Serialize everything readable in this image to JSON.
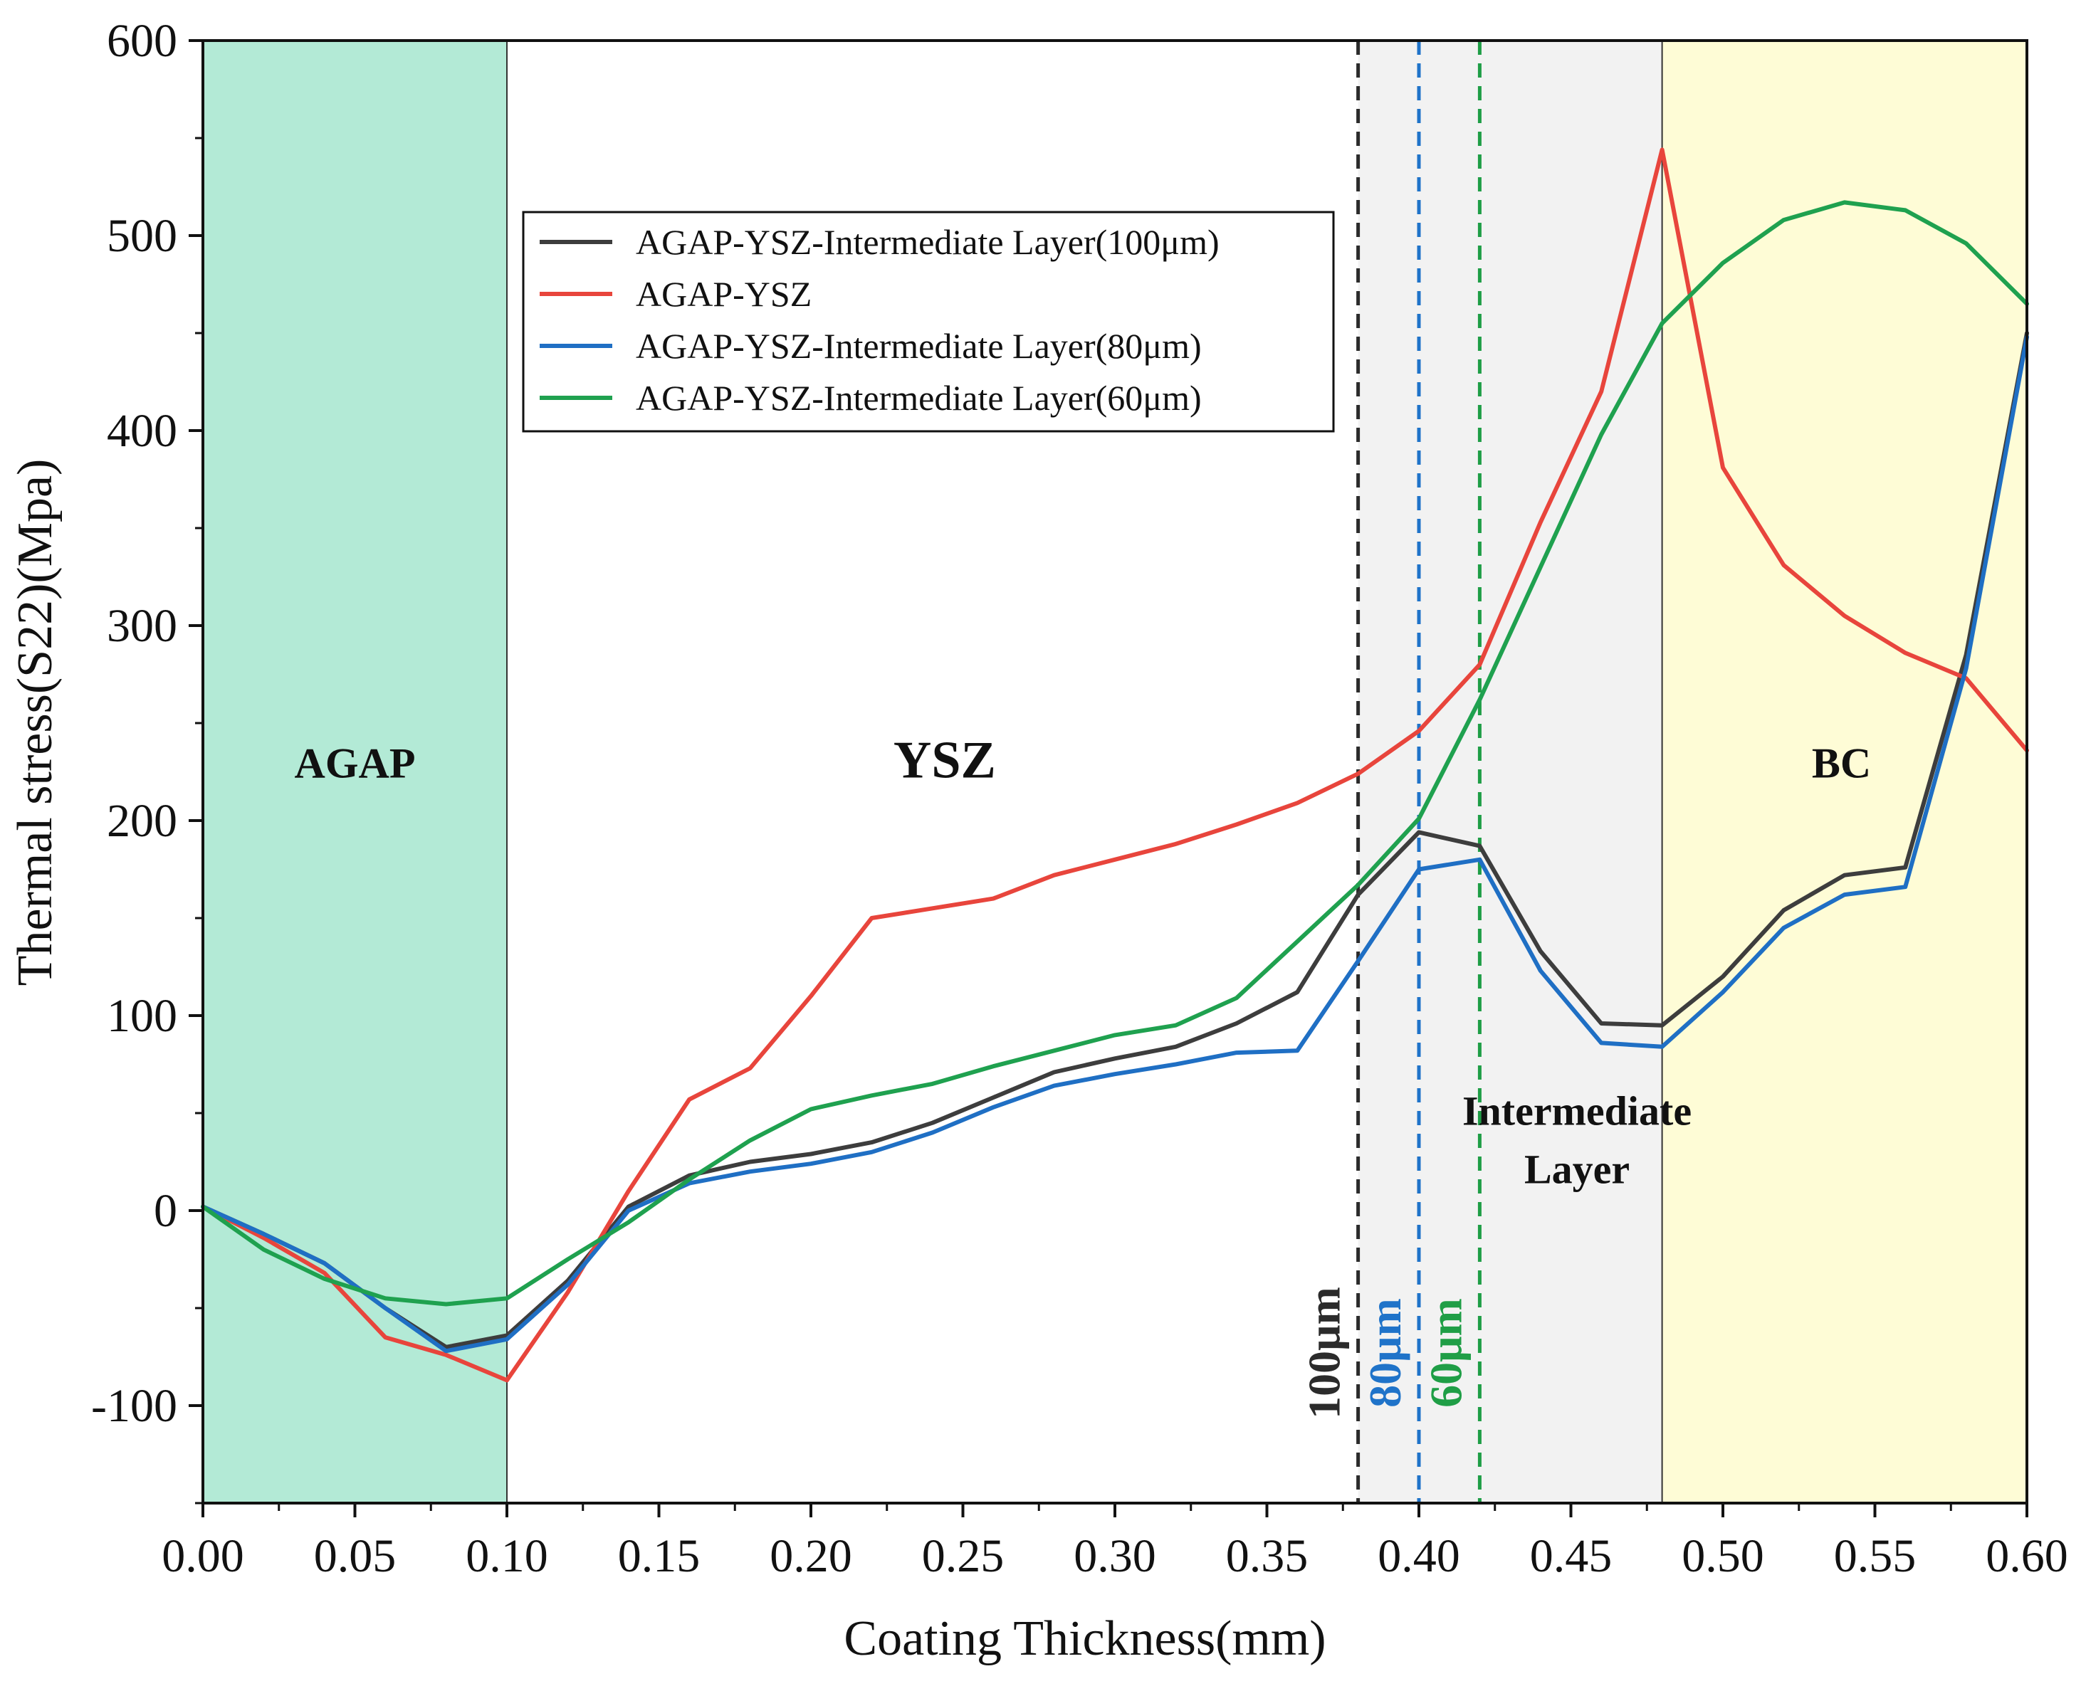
{
  "chart_data": {
    "type": "line",
    "xlabel": "Coating Thickness(mm)",
    "ylabel": "Thermal stress(S22)(Mpa)",
    "xlim": [
      0,
      0.6
    ],
    "ylim": [
      -150,
      600
    ],
    "xticks": [
      0.0,
      0.05,
      0.1,
      0.15,
      0.2,
      0.25,
      0.3,
      0.35,
      0.4,
      0.45,
      0.5,
      0.55,
      0.6
    ],
    "xtick_labels": [
      "0.00",
      "0.05",
      "0.10",
      "0.15",
      "0.20",
      "0.25",
      "0.30",
      "0.35",
      "0.40",
      "0.45",
      "0.50",
      "0.55",
      "0.60"
    ],
    "yticks": [
      -100,
      0,
      100,
      200,
      300,
      400,
      500,
      600
    ],
    "ytick_labels": [
      "-100",
      "0",
      "100",
      "200",
      "300",
      "400",
      "500",
      "600"
    ],
    "legend_position": "upper-center",
    "regions": [
      {
        "name": "AGAP",
        "label": "AGAP",
        "x0": 0.0,
        "x1": 0.1,
        "color": "#b3ead6",
        "label_x": 0.05,
        "label_y": 222
      },
      {
        "name": "YSZ",
        "label": "YSZ",
        "x0": 0.1,
        "x1": 0.38,
        "color": "#ffffff",
        "label_x": 0.244,
        "label_y": 222
      },
      {
        "name": "Intermediate",
        "label": "Intermediate",
        "label2": "Layer",
        "x0": 0.38,
        "x1": 0.48,
        "color": "#f2f2f2",
        "label_x": 0.452,
        "label_y": 44,
        "label2_y": 14
      },
      {
        "name": "BC",
        "label": "BC",
        "x0": 0.48,
        "x1": 0.6,
        "color": "#fefcd6",
        "label_x": 0.539,
        "label_y": 222
      }
    ],
    "boundaries": [
      {
        "x": 0.38,
        "label": "100μm",
        "color": "#2b2b2b"
      },
      {
        "x": 0.4,
        "label": "80μm",
        "color": "#1f73c9"
      },
      {
        "x": 0.42,
        "label": "60μm",
        "color": "#1f9e46"
      }
    ],
    "series": [
      {
        "name": "AGAP-YSZ-Intermediate Layer(100μm)",
        "color": "#3d3d3d",
        "x": [
          0.0,
          0.02,
          0.04,
          0.06,
          0.08,
          0.1,
          0.12,
          0.14,
          0.16,
          0.18,
          0.2,
          0.22,
          0.24,
          0.26,
          0.28,
          0.3,
          0.32,
          0.34,
          0.36,
          0.38,
          0.4,
          0.42,
          0.44,
          0.46,
          0.48,
          0.5,
          0.52,
          0.54,
          0.56,
          0.58,
          0.6
        ],
        "y": [
          2,
          -12,
          -27,
          -50,
          -70,
          -64,
          -36,
          2,
          18,
          25,
          29,
          35,
          45,
          58,
          71,
          78,
          84,
          96,
          112,
          162,
          194,
          187,
          133,
          96,
          95,
          120,
          154,
          172,
          176,
          285,
          450
        ]
      },
      {
        "name": "AGAP-YSZ",
        "color": "#e8453c",
        "x": [
          0.0,
          0.02,
          0.04,
          0.06,
          0.08,
          0.1,
          0.12,
          0.14,
          0.16,
          0.18,
          0.2,
          0.22,
          0.24,
          0.26,
          0.28,
          0.3,
          0.32,
          0.34,
          0.36,
          0.38,
          0.4,
          0.42,
          0.44,
          0.46,
          0.48,
          0.5,
          0.52,
          0.54,
          0.56,
          0.58,
          0.6
        ],
        "y": [
          2,
          -14,
          -32,
          -65,
          -74,
          -87,
          -42,
          10,
          57,
          73,
          110,
          150,
          155,
          160,
          172,
          180,
          188,
          198,
          209,
          224,
          246,
          280,
          353,
          420,
          544,
          381,
          331,
          305,
          286,
          273,
          236
        ]
      },
      {
        "name": "AGAP-YSZ-Intermediate Layer(80μm)",
        "color": "#1f6fc4",
        "x": [
          0.0,
          0.02,
          0.04,
          0.06,
          0.08,
          0.1,
          0.12,
          0.14,
          0.16,
          0.18,
          0.2,
          0.22,
          0.24,
          0.26,
          0.28,
          0.3,
          0.32,
          0.34,
          0.36,
          0.38,
          0.4,
          0.42,
          0.44,
          0.46,
          0.48,
          0.5,
          0.52,
          0.54,
          0.56,
          0.58,
          0.6
        ],
        "y": [
          2,
          -12,
          -27,
          -50,
          -72,
          -66,
          -38,
          0,
          14,
          20,
          24,
          30,
          40,
          53,
          64,
          70,
          75,
          81,
          82,
          128,
          175,
          180,
          123,
          86,
          84,
          112,
          145,
          162,
          166,
          278,
          448
        ]
      },
      {
        "name": "AGAP-YSZ-Intermediate Layer(60μm)",
        "color": "#1fa14f",
        "x": [
          0.0,
          0.02,
          0.04,
          0.06,
          0.08,
          0.1,
          0.12,
          0.14,
          0.16,
          0.18,
          0.2,
          0.22,
          0.24,
          0.26,
          0.28,
          0.3,
          0.32,
          0.34,
          0.36,
          0.38,
          0.4,
          0.42,
          0.44,
          0.46,
          0.48,
          0.5,
          0.52,
          0.54,
          0.56,
          0.58,
          0.6
        ],
        "y": [
          2,
          -20,
          -35,
          -45,
          -48,
          -45,
          -25,
          -6,
          16,
          36,
          52,
          59,
          65,
          74,
          82,
          90,
          95,
          109,
          138,
          167,
          201,
          262,
          330,
          398,
          455,
          486,
          508,
          517,
          513,
          496,
          465
        ]
      }
    ]
  }
}
